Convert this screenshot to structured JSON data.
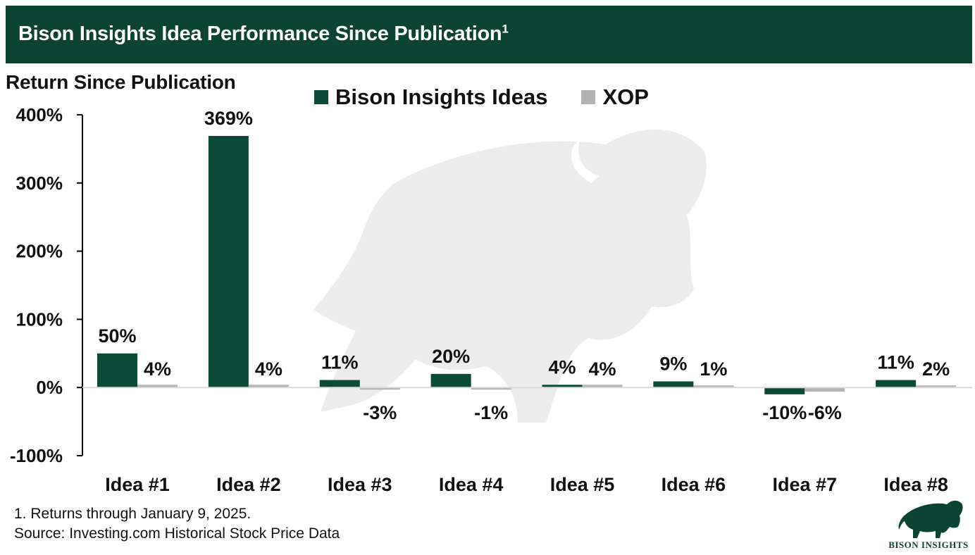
{
  "header": {
    "title": "Bison Insights Idea Performance Since Publication",
    "title_sup": "1"
  },
  "colors": {
    "header_bg": "#0b4433",
    "ideas": "#0b4a36",
    "xop": "#b3b3b3",
    "watermark": "#ececec"
  },
  "chart_data": {
    "type": "bar",
    "ylabel": "Return Since Publication",
    "ylim": [
      -100,
      400
    ],
    "yticks": [
      400,
      300,
      200,
      100,
      0,
      -100
    ],
    "ytick_labels": [
      "400%",
      "300%",
      "200%",
      "100%",
      "0%",
      "-100%"
    ],
    "categories": [
      "Idea #1",
      "Idea #2",
      "Idea #3",
      "Idea #4",
      "Idea #5",
      "Idea #6",
      "Idea #7",
      "Idea #8"
    ],
    "series": [
      {
        "name": "Bison Insights Ideas",
        "values": [
          50,
          369,
          11,
          20,
          4,
          9,
          -10,
          11
        ],
        "labels": [
          "50%",
          "369%",
          "11%",
          "20%",
          "4%",
          "9%",
          "-10%",
          "11%"
        ]
      },
      {
        "name": "XOP",
        "values": [
          4,
          4,
          -3,
          -1,
          4,
          1,
          -6,
          2
        ],
        "labels": [
          "4%",
          "4%",
          "-3%",
          "-1%",
          "4%",
          "1%",
          "-6%",
          "2%"
        ]
      }
    ],
    "legend_position": "top-center",
    "grid": false
  },
  "footnotes": {
    "note1": "1. Returns through January 9, 2025.",
    "source": "Source: Investing.com Historical Stock Price Data"
  },
  "logo": {
    "text": "BISON INSIGHTS",
    "icon": "bison-icon"
  }
}
